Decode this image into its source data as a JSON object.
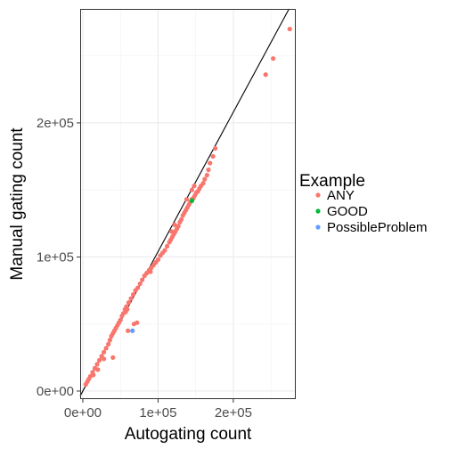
{
  "chart_data": {
    "type": "scatter",
    "title": "",
    "xlabel": "Autogating count",
    "ylabel": "Manual gating count",
    "xlim": [
      -3500,
      283000
    ],
    "ylim": [
      -6000,
      285000
    ],
    "x_ticks": [
      0,
      100000,
      200000
    ],
    "x_tick_labels": [
      "0e+00",
      "1e+05",
      "2e+05"
    ],
    "y_ticks": [
      0,
      100000,
      200000
    ],
    "y_tick_labels": [
      "0e+00",
      "1e+05",
      "2e+05"
    ],
    "grid": true,
    "legend": {
      "title": "Example",
      "placement": "right"
    },
    "reference_line": {
      "slope": 1.04,
      "intercept": 0
    },
    "series": [
      {
        "name": "ANY",
        "color": "#F8766D",
        "points": [
          [
            275000,
            270000
          ],
          [
            253000,
            248000
          ],
          [
            243000,
            236000
          ],
          [
            176000,
            181000
          ],
          [
            173000,
            175000
          ],
          [
            169000,
            170000
          ],
          [
            167000,
            165000
          ],
          [
            165000,
            161000
          ],
          [
            162000,
            158000
          ],
          [
            160000,
            155000
          ],
          [
            157000,
            153000
          ],
          [
            155000,
            151000
          ],
          [
            153000,
            149000
          ],
          [
            151000,
            148000
          ],
          [
            149000,
            146000
          ],
          [
            147000,
            144000
          ],
          [
            145000,
            143000
          ],
          [
            143000,
            141000
          ],
          [
            141000,
            139000
          ],
          [
            139000,
            137000
          ],
          [
            137000,
            135000
          ],
          [
            135000,
            133000
          ],
          [
            133000,
            131000
          ],
          [
            131000,
            128000
          ],
          [
            129000,
            126000
          ],
          [
            127000,
            123000
          ],
          [
            125000,
            121000
          ],
          [
            123000,
            119000
          ],
          [
            121000,
            117000
          ],
          [
            119000,
            115000
          ],
          [
            117000,
            113000
          ],
          [
            115000,
            111000
          ],
          [
            112000,
            108000
          ],
          [
            109000,
            105000
          ],
          [
            106000,
            103000
          ],
          [
            103000,
            101000
          ],
          [
            100000,
            98000
          ],
          [
            97000,
            96000
          ],
          [
            94000,
            94000
          ],
          [
            91000,
            92000
          ],
          [
            88000,
            90000
          ],
          [
            85000,
            88000
          ],
          [
            82000,
            86000
          ],
          [
            79000,
            83000
          ],
          [
            76000,
            80000
          ],
          [
            73000,
            77000
          ],
          [
            70000,
            75000
          ],
          [
            67000,
            72000
          ],
          [
            64000,
            69000
          ],
          [
            61000,
            66000
          ],
          [
            58000,
            63000
          ],
          [
            56000,
            61000
          ],
          [
            54000,
            58000
          ],
          [
            52000,
            56000
          ],
          [
            50000,
            53000
          ],
          [
            48000,
            51000
          ],
          [
            46000,
            49000
          ],
          [
            44000,
            47000
          ],
          [
            42000,
            45000
          ],
          [
            40000,
            43000
          ],
          [
            38000,
            41000
          ],
          [
            36000,
            38000
          ],
          [
            34000,
            35000
          ],
          [
            31000,
            32000
          ],
          [
            28000,
            29000
          ],
          [
            25000,
            26000
          ],
          [
            22000,
            23000
          ],
          [
            19000,
            20000
          ],
          [
            16000,
            17000
          ],
          [
            13000,
            14000
          ],
          [
            10000,
            11000
          ],
          [
            8000,
            9000
          ],
          [
            6000,
            7000
          ],
          [
            4000,
            5000
          ],
          [
            72000,
            51000
          ],
          [
            68000,
            50000
          ],
          [
            60000,
            45000
          ],
          [
            40000,
            25000
          ],
          [
            28000,
            24000
          ],
          [
            20000,
            16000
          ],
          [
            14000,
            12000
          ],
          [
            145000,
            150000
          ],
          [
            148000,
            153000
          ],
          [
            138000,
            143000
          ],
          [
            122000,
            124000
          ],
          [
            118000,
            119000
          ],
          [
            90000,
            89000
          ],
          [
            57000,
            59000
          ],
          [
            59000,
            61000
          ]
        ]
      },
      {
        "name": "GOOD",
        "color": "#00BA38",
        "points": [
          [
            145000,
            142000
          ]
        ]
      },
      {
        "name": "PossibleProblem",
        "color": "#619CFF",
        "points": [
          [
            66000,
            45000
          ]
        ]
      }
    ]
  }
}
